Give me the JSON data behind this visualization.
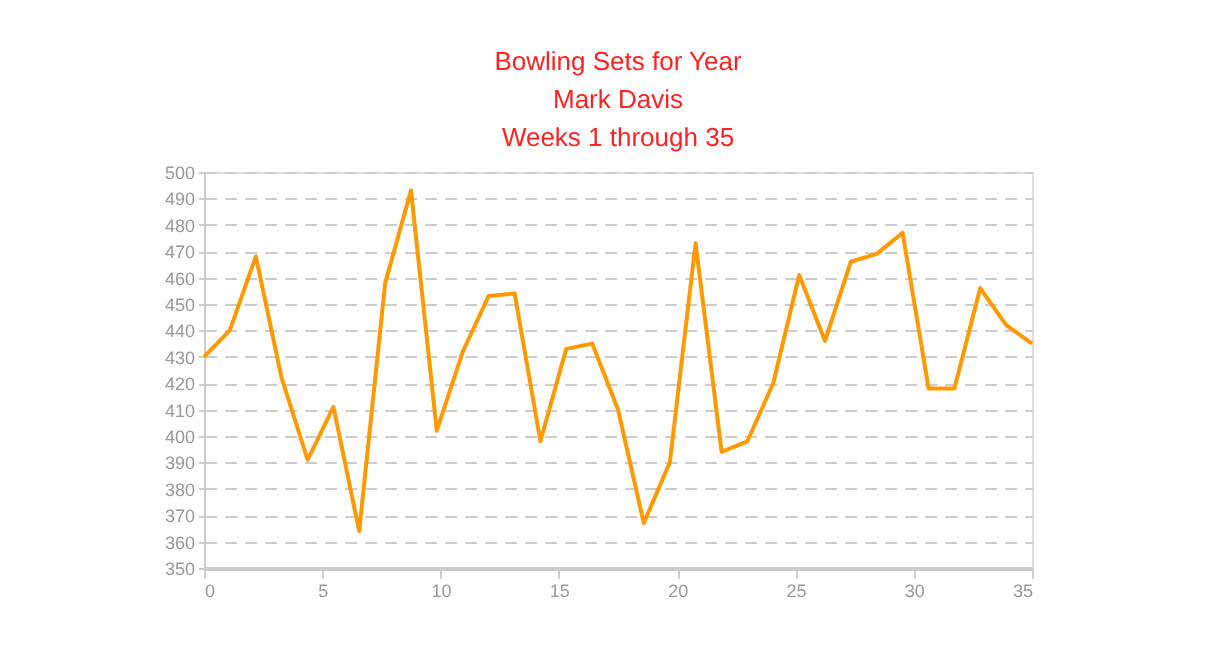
{
  "chart_data": {
    "type": "line",
    "title": "Bowling Sets for Year",
    "subtitle": "Mark Davis",
    "annotations": [
      "Weeks 1 through 35"
    ],
    "x": [
      0,
      1.09,
      2.19,
      3.28,
      4.38,
      5.47,
      6.56,
      7.66,
      8.75,
      9.84,
      10.94,
      12.03,
      13.13,
      14.22,
      15.31,
      16.41,
      17.5,
      18.59,
      19.69,
      20.78,
      21.88,
      22.97,
      24.06,
      25.16,
      26.25,
      27.34,
      28.44,
      29.53,
      30.63,
      31.72,
      32.81,
      33.91,
      35
    ],
    "series": [
      {
        "color": "#ff9900",
        "values": [
          430,
          440,
          468,
          422,
          391,
          411,
          364,
          458,
          493,
          402,
          432,
          453,
          454,
          398,
          433,
          435,
          410,
          367,
          390,
          473,
          394,
          398,
          420,
          461,
          436,
          466,
          469,
          477,
          418,
          418,
          456,
          442,
          435
        ]
      }
    ],
    "xlim": [
      0,
      35
    ],
    "xticks": [
      0,
      5,
      10,
      15,
      20,
      25,
      30,
      35
    ],
    "ylim": [
      350,
      500
    ],
    "yticks": [
      350,
      360,
      370,
      380,
      390,
      400,
      410,
      420,
      430,
      440,
      450,
      460,
      470,
      480,
      490,
      500
    ],
    "grid": "y",
    "marker": "none",
    "line_style": "solid"
  }
}
